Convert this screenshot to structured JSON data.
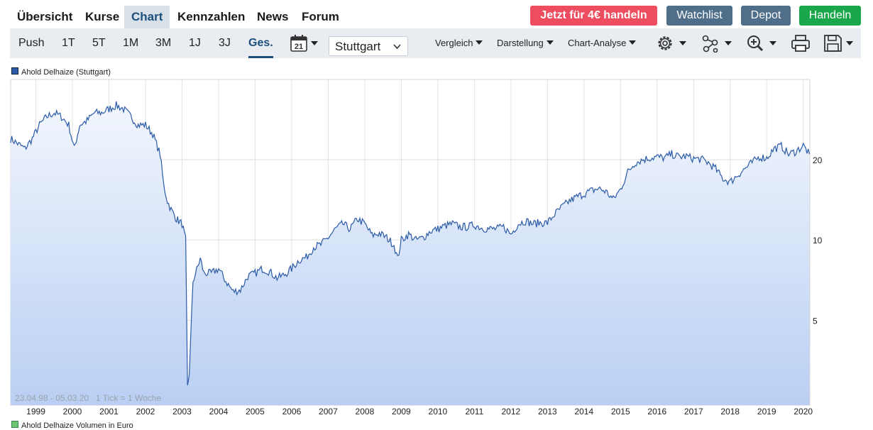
{
  "nav": {
    "tabs": [
      "Übersicht",
      "Kurse",
      "Chart",
      "Kennzahlen",
      "News",
      "Forum"
    ],
    "active": "Chart",
    "buttons": {
      "trade": "Jetzt für 4€ handeln",
      "watchlist": "Watchlist",
      "depot": "Depot",
      "handeln": "Handeln"
    },
    "colors": {
      "trade": "#ee4d5f",
      "watchlist": "#4f6e8a",
      "depot": "#4f6e8a",
      "handeln": "#1aa64a"
    }
  },
  "toolbar": {
    "periods": [
      "Push",
      "1T",
      "5T",
      "1M",
      "3M",
      "1J",
      "3J",
      "Ges."
    ],
    "active_period": "Ges.",
    "calendar_day": "21",
    "exchange": "Stuttgart",
    "menus": [
      "Vergleich",
      "Darstellung",
      "Chart-Analyse"
    ],
    "icons": [
      "calendar-icon",
      "gear-icon",
      "indicators-icon",
      "zoom-icon",
      "print-icon",
      "save-icon"
    ]
  },
  "legend": {
    "series": "Ahold Delhaize (Stuttgart)",
    "volume": "Ahold Delhaize Volumen in Euro"
  },
  "chart_data": {
    "type": "area",
    "series": [
      {
        "name": "Ahold Delhaize (Stuttgart)",
        "x": [
          1998.31,
          1998.5,
          1998.7,
          1998.9,
          1999.1,
          1999.3,
          1999.5,
          1999.7,
          1999.9,
          2000.05,
          2000.2,
          2000.4,
          2000.6,
          2000.8,
          2001.0,
          2001.2,
          2001.4,
          2001.6,
          2001.8,
          2002.0,
          2002.2,
          2002.4,
          2002.5,
          2002.6,
          2002.7,
          2002.85,
          2003.0,
          2003.1,
          2003.15,
          2003.2,
          2003.3,
          2003.5,
          2003.6,
          2003.8,
          2004.0,
          2004.2,
          2004.4,
          2004.6,
          2004.8,
          2005.0,
          2005.2,
          2005.4,
          2005.6,
          2005.8,
          2006.0,
          2006.2,
          2006.4,
          2006.6,
          2006.8,
          2007.0,
          2007.2,
          2007.4,
          2007.6,
          2007.8,
          2008.0,
          2008.2,
          2008.4,
          2008.6,
          2008.8,
          2008.9,
          2009.0,
          2009.2,
          2009.4,
          2009.6,
          2009.8,
          2010.0,
          2010.2,
          2010.4,
          2010.6,
          2010.8,
          2011.0,
          2011.2,
          2011.4,
          2011.6,
          2011.8,
          2012.0,
          2012.2,
          2012.4,
          2012.6,
          2012.8,
          2013.0,
          2013.2,
          2013.4,
          2013.6,
          2013.8,
          2014.0,
          2014.2,
          2014.4,
          2014.6,
          2014.8,
          2015.0,
          2015.2,
          2015.4,
          2015.6,
          2015.8,
          2016.0,
          2016.2,
          2016.4,
          2016.6,
          2016.8,
          2017.0,
          2017.2,
          2017.4,
          2017.6,
          2017.8,
          2018.0,
          2018.2,
          2018.4,
          2018.6,
          2018.8,
          2019.0,
          2019.2,
          2019.4,
          2019.6,
          2019.8,
          2020.0,
          2020.17
        ],
        "y": [
          24,
          23,
          22,
          24,
          27,
          29,
          30,
          29,
          27,
          22,
          27,
          28,
          30,
          30,
          31,
          32,
          31,
          29,
          27,
          27,
          25,
          21,
          16,
          14,
          13,
          12,
          11.5,
          10,
          2.8,
          3.2,
          7,
          8.5,
          7.5,
          7.5,
          7.8,
          7,
          6.4,
          6.5,
          7.3,
          7.5,
          7.8,
          7.6,
          7.2,
          7.4,
          7.8,
          8.4,
          8.6,
          9.4,
          9.6,
          10.2,
          11.0,
          11.5,
          11.0,
          12.0,
          11.5,
          10.4,
          10.6,
          10.2,
          9.6,
          8.5,
          10.0,
          10.5,
          10.0,
          10.2,
          10.8,
          11.0,
          11.3,
          11.5,
          11.2,
          11.2,
          11.4,
          11.1,
          11.0,
          11.0,
          11.2,
          10.5,
          11.5,
          11.8,
          11.5,
          11.6,
          11.6,
          12.5,
          13.3,
          14.0,
          14.5,
          14.9,
          15.3,
          15.6,
          15.2,
          14.2,
          15.5,
          18.0,
          19.5,
          20.0,
          20.3,
          20.5,
          20.3,
          21.0,
          20.5,
          20.6,
          20.2,
          20.1,
          19.5,
          18.5,
          17.0,
          16.5,
          17.5,
          18.5,
          19.5,
          20.5,
          20.3,
          22.0,
          22.5,
          21.0,
          21.5,
          22.6,
          21.0
        ]
      }
    ],
    "x_ticks": [
      1999,
      2000,
      2001,
      2002,
      2003,
      2004,
      2005,
      2006,
      2007,
      2008,
      2009,
      2010,
      2011,
      2012,
      2013,
      2014,
      2015,
      2016,
      2017,
      2018,
      2019,
      2020
    ],
    "xlim": [
      1998.31,
      2020.18
    ],
    "y_ticks": [
      5,
      10,
      20
    ],
    "y_scale": "log",
    "ylim": [
      2.4,
      40
    ],
    "range_label": "23.04.98 - 05.03.20",
    "tick_label": "1 Tick = 1 Woche",
    "line_color": "#2a5aa8",
    "fill_top": "#f2f6fd",
    "fill_bottom": "#b9cff3"
  }
}
